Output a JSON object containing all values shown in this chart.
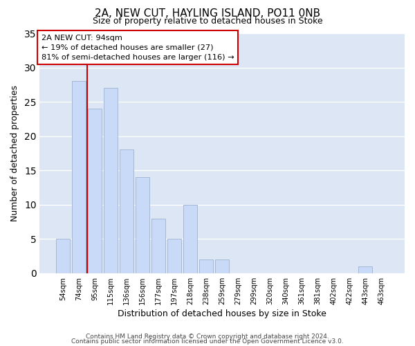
{
  "title": "2A, NEW CUT, HAYLING ISLAND, PO11 0NB",
  "subtitle": "Size of property relative to detached houses in Stoke",
  "xlabel": "Distribution of detached houses by size in Stoke",
  "ylabel": "Number of detached properties",
  "bar_labels": [
    "54sqm",
    "74sqm",
    "95sqm",
    "115sqm",
    "136sqm",
    "156sqm",
    "177sqm",
    "197sqm",
    "218sqm",
    "238sqm",
    "259sqm",
    "279sqm",
    "299sqm",
    "320sqm",
    "340sqm",
    "361sqm",
    "381sqm",
    "402sqm",
    "422sqm",
    "443sqm",
    "463sqm"
  ],
  "bar_values": [
    5,
    28,
    24,
    27,
    18,
    14,
    8,
    5,
    10,
    2,
    2,
    0,
    0,
    0,
    0,
    0,
    0,
    0,
    0,
    1,
    0
  ],
  "bar_color": "#c9daf8",
  "bar_edge_color": "#a4b8d4",
  "vline_color": "#cc0000",
  "vline_index": 1.5,
  "box_edge_color": "#cc0000",
  "annotation_line1": "2A NEW CUT: 94sqm",
  "annotation_line2": "← 19% of detached houses are smaller (27)",
  "annotation_line3": "81% of semi-detached houses are larger (116) →",
  "ylim": [
    0,
    35
  ],
  "yticks": [
    0,
    5,
    10,
    15,
    20,
    25,
    30,
    35
  ],
  "footer1": "Contains HM Land Registry data © Crown copyright and database right 2024.",
  "footer2": "Contains public sector information licensed under the Open Government Licence v3.0.",
  "bg_color": "#ffffff",
  "grid_color": "#ffffff",
  "plot_bg_color": "#dce6f5"
}
